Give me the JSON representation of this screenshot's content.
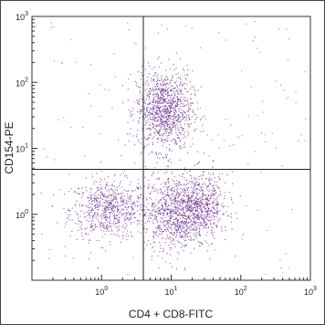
{
  "chart_data": {
    "type": "scatter",
    "title": "",
    "xlabel": "CD4 + CD8-FITC",
    "ylabel": "CD154-PE",
    "xscale": "log",
    "yscale": "log",
    "xlim": [
      0.1,
      1000
    ],
    "ylim": [
      0.1,
      1000
    ],
    "xticks": [
      {
        "value": 1,
        "base": "10",
        "exp": "0"
      },
      {
        "value": 10,
        "base": "10",
        "exp": "1"
      },
      {
        "value": 100,
        "base": "10",
        "exp": "2"
      },
      {
        "value": 1000,
        "base": "10",
        "exp": "3"
      }
    ],
    "yticks": [
      {
        "value": 1,
        "base": "10",
        "exp": "0"
      },
      {
        "value": 10,
        "base": "10",
        "exp": "1"
      },
      {
        "value": 100,
        "base": "10",
        "exp": "2"
      },
      {
        "value": 1000,
        "base": "10",
        "exp": "3"
      }
    ],
    "quadrant_gate": {
      "x": 3.98,
      "y": 4.8
    },
    "grid": false,
    "point_color": "#6a2a8e",
    "populations": [
      {
        "x_center": 1.26,
        "y_center": 1.2,
        "x_spread_decades": 0.28,
        "y_spread_decades": 0.22,
        "count": 700
      },
      {
        "x_center": 7.9,
        "y_center": 38.0,
        "x_spread_decades": 0.2,
        "y_spread_decades": 0.3,
        "count": 1100
      },
      {
        "x_center": 11.2,
        "y_center": 1.1,
        "x_spread_decades": 0.22,
        "y_spread_decades": 0.28,
        "count": 900
      },
      {
        "x_center": 28.2,
        "y_center": 1.35,
        "x_spread_decades": 0.18,
        "y_spread_decades": 0.25,
        "count": 550
      }
    ]
  }
}
